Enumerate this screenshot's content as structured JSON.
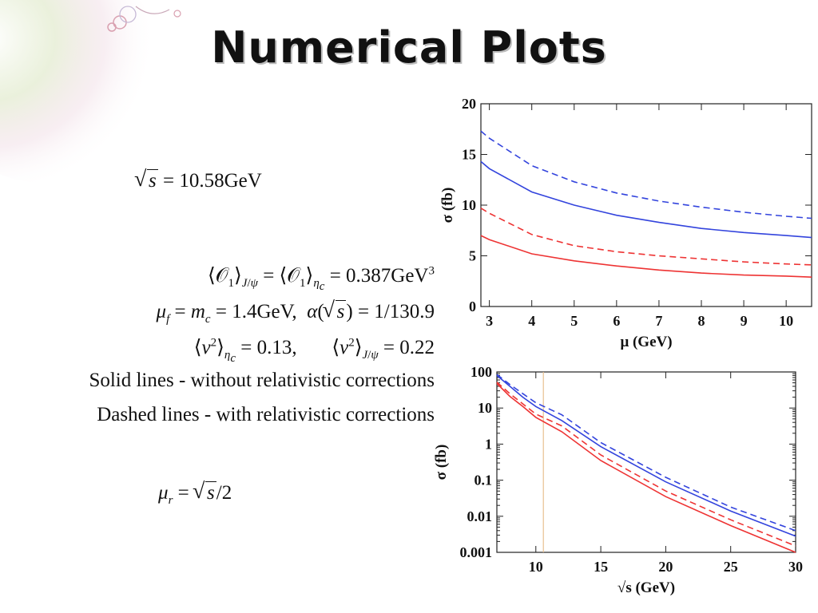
{
  "title": "Numerical Plots",
  "params": {
    "sqrt_s": "√s = 10.58GeV",
    "ldme": "⟨𝒪₁⟩J/ψ = ⟨𝒪₁⟩ηc = 0.387GeV³",
    "scales": "μf = mc = 1.4GeV,  α(√s) = 1/130.9",
    "v2": "⟨v²⟩ηc = 0.13,      ⟨v²⟩J/ψ = 0.22",
    "solid_note": "Solid lines - without relativistic corrections",
    "dashed_note": "Dashed lines - with relativistic corrections",
    "mu_r": "μr = √s/2"
  },
  "chart_data": [
    {
      "type": "line",
      "xlabel": "μ (GeV)",
      "ylabel": "σ (fb)",
      "xlim": [
        2.8,
        10.6
      ],
      "ylim": [
        0,
        20
      ],
      "xticks": [
        "3",
        "4",
        "5",
        "6",
        "7",
        "8",
        "9",
        "10"
      ],
      "yticks": [
        "0",
        "5",
        "10",
        "15",
        "20"
      ],
      "x": [
        2.8,
        3,
        4,
        5,
        6,
        7,
        8,
        9,
        10,
        10.6
      ],
      "series": [
        {
          "color": "#3344dd",
          "style": "dashed",
          "values": [
            17.3,
            16.6,
            13.9,
            12.3,
            11.2,
            10.4,
            9.8,
            9.3,
            8.9,
            8.7
          ]
        },
        {
          "color": "#3344dd",
          "style": "solid",
          "values": [
            14.3,
            13.6,
            11.3,
            10.0,
            9.0,
            8.3,
            7.7,
            7.3,
            7.0,
            6.8
          ]
        },
        {
          "color": "#ee3333",
          "style": "dashed",
          "values": [
            9.7,
            9.2,
            7.1,
            6.0,
            5.4,
            5.0,
            4.7,
            4.4,
            4.2,
            4.1
          ]
        },
        {
          "color": "#ee3333",
          "style": "solid",
          "values": [
            7.0,
            6.6,
            5.2,
            4.5,
            4.0,
            3.6,
            3.3,
            3.1,
            3.0,
            2.9
          ]
        }
      ]
    },
    {
      "type": "line",
      "xlabel": "√s  (GeV)",
      "ylabel": "σ (fb)",
      "yscale": "log",
      "xlim": [
        7,
        30
      ],
      "ylim": [
        0.001,
        100
      ],
      "xticks": [
        "10",
        "15",
        "20",
        "25",
        "30"
      ],
      "yticks": [
        "0.001",
        "0.01",
        "0.1",
        "1",
        "10",
        "100"
      ],
      "marker_x": 10.58,
      "x": [
        7,
        8,
        9,
        10,
        12,
        15,
        20,
        25,
        30
      ],
      "series": [
        {
          "color": "#3344dd",
          "style": "dashed",
          "values": [
            85,
            45,
            25,
            14,
            6.5,
            1.1,
            0.12,
            0.018,
            0.004
          ]
        },
        {
          "color": "#3344dd",
          "style": "solid",
          "values": [
            80,
            40,
            20,
            11,
            4.5,
            0.85,
            0.09,
            0.014,
            0.0028
          ]
        },
        {
          "color": "#ee3333",
          "style": "dashed",
          "values": [
            52,
            25,
            13,
            6.8,
            3.2,
            0.5,
            0.05,
            0.008,
            0.0015
          ]
        },
        {
          "color": "#ee3333",
          "style": "solid",
          "values": [
            48,
            21,
            11,
            5.5,
            2.2,
            0.35,
            0.035,
            0.0055,
            0.001
          ]
        }
      ]
    }
  ]
}
